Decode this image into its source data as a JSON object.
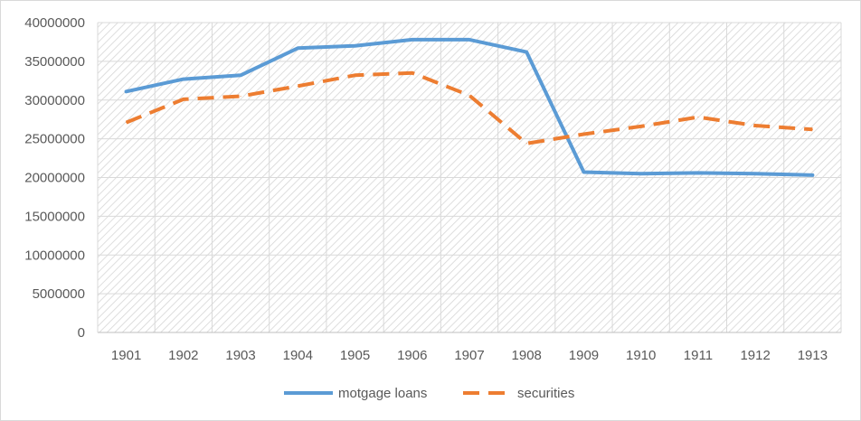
{
  "chart_data": {
    "type": "line",
    "title": "",
    "xlabel": "",
    "ylabel": "",
    "categories": [
      "1901",
      "1902",
      "1903",
      "1904",
      "1905",
      "1906",
      "1907",
      "1908",
      "1909",
      "1910",
      "1911",
      "1912",
      "1913"
    ],
    "ylim": [
      0,
      40000000
    ],
    "yticks": [
      0,
      5000000,
      10000000,
      15000000,
      20000000,
      25000000,
      30000000,
      35000000,
      40000000
    ],
    "ytick_labels": [
      "0",
      "5000000",
      "10000000",
      "15000000",
      "20000000",
      "25000000",
      "30000000",
      "35000000",
      "40000000"
    ],
    "grid": true,
    "background_pattern": "diagonal-hatch",
    "legend_position": "bottom",
    "series": [
      {
        "name": "motgage loans",
        "color": "#5b9bd5",
        "style": "solid",
        "values": [
          31100000,
          32700000,
          33200000,
          36700000,
          37000000,
          37800000,
          37800000,
          36200000,
          20700000,
          20500000,
          20600000,
          20500000,
          20300000
        ]
      },
      {
        "name": "securities",
        "color": "#ed7d31",
        "style": "dashed",
        "values": [
          27100000,
          30100000,
          30500000,
          31800000,
          33200000,
          33500000,
          30600000,
          24400000,
          25600000,
          26600000,
          27800000,
          26700000,
          26200000
        ]
      }
    ]
  }
}
